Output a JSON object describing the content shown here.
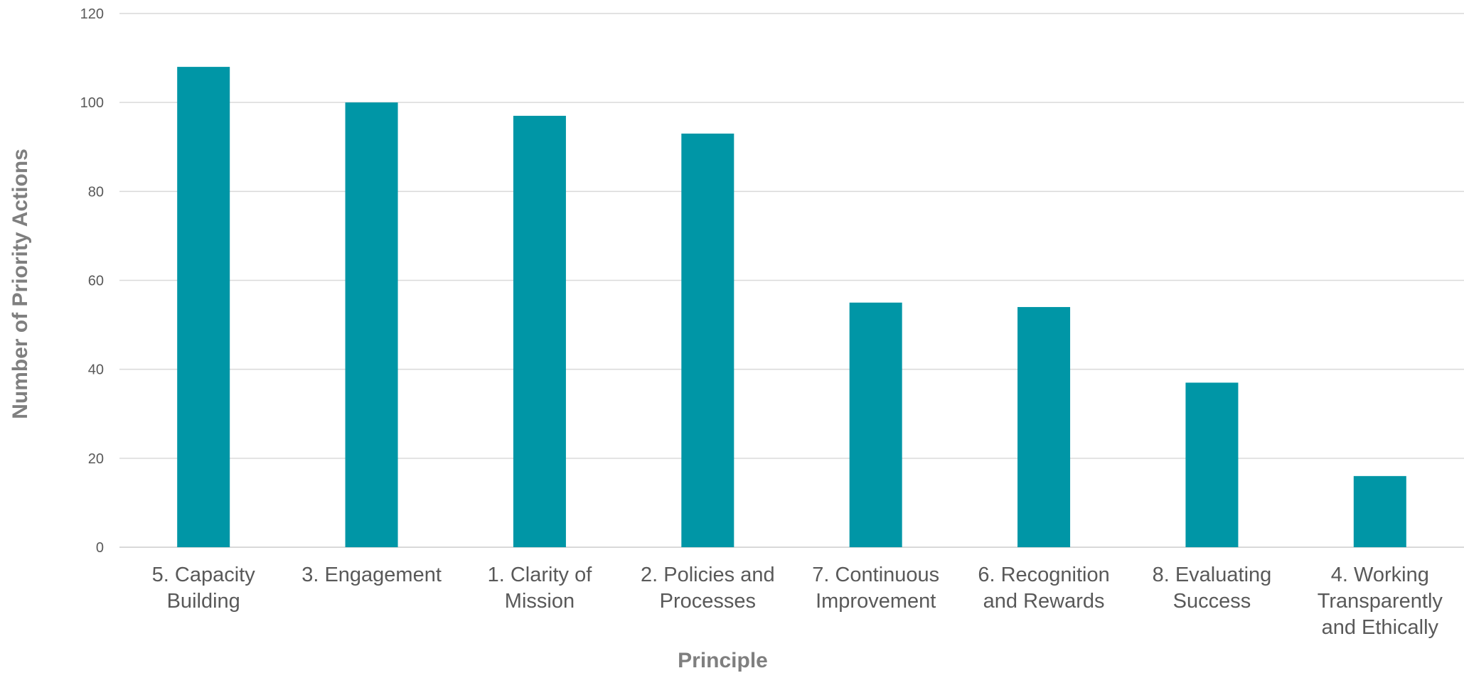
{
  "chart_data": {
    "type": "bar",
    "title": "",
    "xlabel": "Principle",
    "ylabel": "Number of Priority Actions",
    "ylim": [
      0,
      120
    ],
    "yticks": [
      0,
      20,
      40,
      60,
      80,
      100,
      120
    ],
    "categories": [
      [
        "5. Capacity",
        "Building"
      ],
      [
        "3. Engagement"
      ],
      [
        "1. Clarity of",
        "Mission"
      ],
      [
        "2. Policies and",
        "Processes"
      ],
      [
        "7. Continuous",
        "Improvement"
      ],
      [
        "6. Recognition",
        "and Rewards"
      ],
      [
        "8. Evaluating",
        "Success"
      ],
      [
        "4. Working",
        "Transparently",
        "and Ethically"
      ]
    ],
    "values": [
      108,
      100,
      97,
      93,
      55,
      54,
      37,
      16
    ],
    "grid": true,
    "legend": "none",
    "colors": {
      "bar": "#0096a6",
      "grid": "#d9d9d9",
      "text": "#595959",
      "axis_title": "#7f7f7f"
    }
  }
}
